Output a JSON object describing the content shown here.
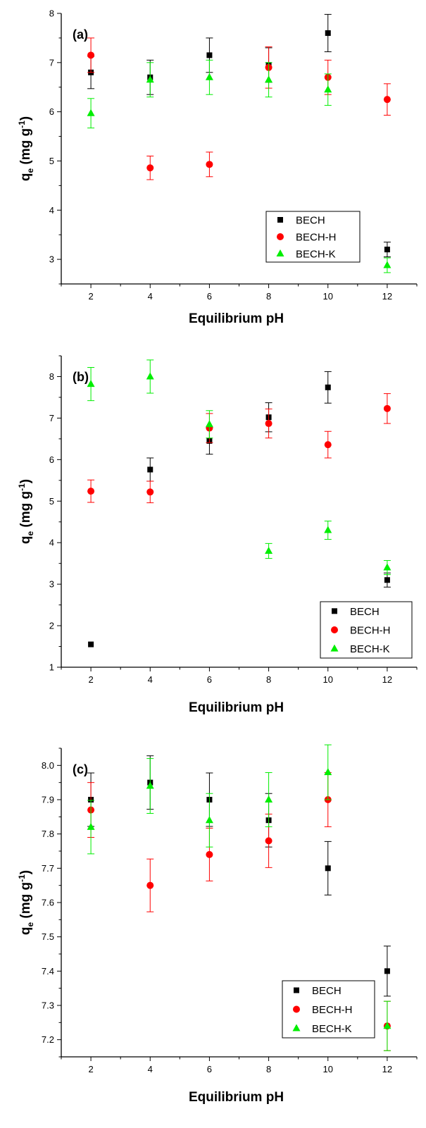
{
  "colors": {
    "BECH": "#000000",
    "BECH-H": "#ff0000",
    "BECH-K": "#00ee00"
  },
  "chart_data": [
    {
      "type": "scatter",
      "panel_label": "(a)",
      "xlabel": "Equilibrium pH",
      "ylabel_main": "q",
      "ylabel_sub": "e",
      "ylabel_unit": "(mg g",
      "ylabel_sup": "-1",
      "ylabel_close": ")",
      "xlim": [
        1,
        13
      ],
      "ylim": [
        2.5,
        8
      ],
      "xticks": [
        2,
        4,
        6,
        8,
        10,
        12
      ],
      "yticks": [
        3,
        4,
        5,
        6,
        7,
        8
      ],
      "ytick_labels": [
        "3",
        "4",
        "5",
        "6",
        "7",
        "8"
      ],
      "legend_position": "bottom-right",
      "series": [
        {
          "name": "BECH",
          "marker": "square",
          "x": [
            2,
            4,
            6,
            8,
            10,
            12
          ],
          "y": [
            6.8,
            6.7,
            7.15,
            6.95,
            7.6,
            3.2
          ],
          "err": [
            0.33,
            0.35,
            0.35,
            0.35,
            0.38,
            0.15
          ]
        },
        {
          "name": "BECH-H",
          "marker": "circle",
          "x": [
            2,
            4,
            6,
            8,
            10,
            12
          ],
          "y": [
            7.15,
            4.86,
            4.93,
            6.9,
            6.7,
            6.25
          ],
          "err": [
            0.35,
            0.24,
            0.25,
            0.42,
            0.35,
            0.32
          ]
        },
        {
          "name": "BECH-K",
          "marker": "triangle",
          "x": [
            2,
            4,
            6,
            8,
            10,
            12
          ],
          "y": [
            5.97,
            6.65,
            6.7,
            6.65,
            6.45,
            2.88
          ],
          "err": [
            0.3,
            0.35,
            0.35,
            0.35,
            0.32,
            0.15
          ]
        }
      ]
    },
    {
      "type": "scatter",
      "panel_label": "(b)",
      "xlabel": "Equilibrium pH",
      "ylabel_main": "q",
      "ylabel_sub": "e",
      "ylabel_unit": "(mg g",
      "ylabel_sup": "-1",
      "ylabel_close": ")",
      "xlim": [
        1,
        13
      ],
      "ylim": [
        1,
        8.5
      ],
      "xticks": [
        2,
        4,
        6,
        8,
        10,
        12
      ],
      "yticks": [
        1,
        2,
        3,
        4,
        5,
        6,
        7,
        8
      ],
      "ytick_labels": [
        "1",
        "2",
        "3",
        "4",
        "5",
        "6",
        "7",
        "8"
      ],
      "legend_position": "bottom-right",
      "series": [
        {
          "name": "BECH",
          "marker": "square",
          "x": [
            2,
            4,
            6,
            8,
            10,
            12
          ],
          "y": [
            1.55,
            5.76,
            6.45,
            7.02,
            7.74,
            3.1
          ],
          "err": [
            0,
            0.28,
            0.32,
            0.35,
            0.38,
            0.17
          ]
        },
        {
          "name": "BECH-H",
          "marker": "circle",
          "x": [
            2,
            4,
            6,
            8,
            10,
            12
          ],
          "y": [
            5.24,
            5.22,
            6.76,
            6.87,
            6.36,
            7.23
          ],
          "err": [
            0.27,
            0.26,
            0.35,
            0.35,
            0.32,
            0.36
          ]
        },
        {
          "name": "BECH-K",
          "marker": "triangle",
          "x": [
            2,
            4,
            6,
            8,
            10,
            12
          ],
          "y": [
            7.82,
            8.0,
            6.85,
            3.8,
            4.3,
            3.4
          ],
          "err": [
            0.4,
            0.4,
            0.33,
            0.18,
            0.22,
            0.17
          ]
        }
      ]
    },
    {
      "type": "scatter",
      "panel_label": "(c)",
      "xlabel": "Equilibrium pH",
      "ylabel_main": "q",
      "ylabel_sub": "e",
      "ylabel_unit": "(mg g",
      "ylabel_sup": "-1",
      "ylabel_close": ")",
      "xlim": [
        1,
        13
      ],
      "ylim": [
        7.15,
        8.05
      ],
      "xticks": [
        2,
        4,
        6,
        8,
        10,
        12
      ],
      "yticks": [
        7.2,
        7.3,
        7.4,
        7.5,
        7.6,
        7.7,
        7.8,
        7.9,
        8.0
      ],
      "ytick_labels": [
        "7.2",
        "7.3",
        "7.4",
        "7.5",
        "7.6",
        "7.7",
        "7.8",
        "7.9",
        "8.0"
      ],
      "legend_position": "bottom-right",
      "series": [
        {
          "name": "BECH",
          "marker": "square",
          "x": [
            2,
            4,
            6,
            8,
            10,
            12
          ],
          "y": [
            7.9,
            7.95,
            7.9,
            7.84,
            7.7,
            7.4
          ],
          "err": [
            0.078,
            0.078,
            0.078,
            0.078,
            0.078,
            0.073
          ]
        },
        {
          "name": "BECH-H",
          "marker": "circle",
          "x": [
            2,
            4,
            6,
            8,
            10,
            12
          ],
          "y": [
            7.87,
            7.65,
            7.74,
            7.78,
            7.9,
            7.24
          ],
          "err": [
            0.08,
            0.077,
            0.077,
            0.078,
            0.079,
            0.072
          ]
        },
        {
          "name": "BECH-K",
          "marker": "triangle",
          "x": [
            2,
            4,
            6,
            8,
            10,
            12
          ],
          "y": [
            7.82,
            7.94,
            7.84,
            7.9,
            7.98,
            7.24
          ],
          "err": [
            0.078,
            0.08,
            0.078,
            0.079,
            0.08,
            0.072
          ]
        }
      ]
    }
  ]
}
